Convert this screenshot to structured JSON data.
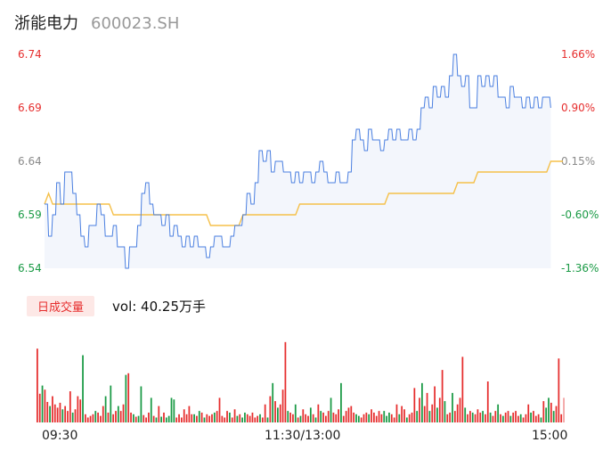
{
  "header": {
    "name": "浙能电力",
    "code": "600023.SH"
  },
  "price_ticks": [
    {
      "value": "6.74",
      "pct": "1.66%",
      "tone": "up"
    },
    {
      "value": "6.69",
      "pct": "0.90%",
      "tone": "up"
    },
    {
      "value": "6.64",
      "pct": "0.15%",
      "tone": "flat"
    },
    {
      "value": "6.59",
      "pct": "-0.60%",
      "tone": "down"
    },
    {
      "value": "6.54",
      "pct": "-1.36%",
      "tone": "down"
    }
  ],
  "volume": {
    "tab_label": "日成交量",
    "text": "vol: 40.25万手"
  },
  "time_labels": {
    "start": "09:30",
    "mid": "11:30/13:00",
    "end": "15:00"
  },
  "colors": {
    "price_line": "#4a7fe0",
    "avg_line": "#f5c04a",
    "up": "#e62e2e",
    "down": "#1a9a45",
    "area_fill": "#f3f6fc"
  },
  "chart_data": {
    "type": "line",
    "ylim": [
      6.54,
      6.74
    ],
    "price_points": [
      [
        0,
        6.6
      ],
      [
        1,
        6.57
      ],
      [
        2,
        6.59
      ],
      [
        3,
        6.62
      ],
      [
        4,
        6.6
      ],
      [
        5,
        6.63
      ],
      [
        6,
        6.63
      ],
      [
        7,
        6.61
      ],
      [
        8,
        6.59
      ],
      [
        9,
        6.57
      ],
      [
        10,
        6.56
      ],
      [
        11,
        6.58
      ],
      [
        12,
        6.58
      ],
      [
        13,
        6.6
      ],
      [
        14,
        6.59
      ],
      [
        15,
        6.57
      ],
      [
        16,
        6.57
      ],
      [
        17,
        6.58
      ],
      [
        18,
        6.56
      ],
      [
        19,
        6.56
      ],
      [
        20,
        6.54
      ],
      [
        21,
        6.56
      ],
      [
        22,
        6.56
      ],
      [
        23,
        6.58
      ],
      [
        24,
        6.61
      ],
      [
        25,
        6.62
      ],
      [
        26,
        6.6
      ],
      [
        27,
        6.59
      ],
      [
        28,
        6.59
      ],
      [
        29,
        6.58
      ],
      [
        30,
        6.59
      ],
      [
        31,
        6.57
      ],
      [
        32,
        6.58
      ],
      [
        33,
        6.57
      ],
      [
        34,
        6.56
      ],
      [
        35,
        6.57
      ],
      [
        36,
        6.56
      ],
      [
        37,
        6.57
      ],
      [
        38,
        6.56
      ],
      [
        39,
        6.56
      ],
      [
        40,
        6.55
      ],
      [
        41,
        6.56
      ],
      [
        42,
        6.57
      ],
      [
        43,
        6.57
      ],
      [
        44,
        6.56
      ],
      [
        45,
        6.56
      ],
      [
        46,
        6.57
      ],
      [
        47,
        6.58
      ],
      [
        48,
        6.58
      ],
      [
        49,
        6.59
      ],
      [
        50,
        6.61
      ],
      [
        51,
        6.6
      ],
      [
        52,
        6.62
      ],
      [
        53,
        6.65
      ],
      [
        54,
        6.64
      ],
      [
        55,
        6.65
      ],
      [
        56,
        6.63
      ],
      [
        57,
        6.64
      ],
      [
        58,
        6.64
      ],
      [
        59,
        6.63
      ],
      [
        60,
        6.63
      ],
      [
        61,
        6.62
      ],
      [
        62,
        6.63
      ],
      [
        63,
        6.62
      ],
      [
        64,
        6.63
      ],
      [
        65,
        6.63
      ],
      [
        66,
        6.62
      ],
      [
        67,
        6.63
      ],
      [
        68,
        6.64
      ],
      [
        69,
        6.63
      ],
      [
        70,
        6.62
      ],
      [
        71,
        6.62
      ],
      [
        72,
        6.63
      ],
      [
        73,
        6.62
      ],
      [
        74,
        6.62
      ],
      [
        75,
        6.63
      ],
      [
        76,
        6.66
      ],
      [
        77,
        6.67
      ],
      [
        78,
        6.66
      ],
      [
        79,
        6.65
      ],
      [
        80,
        6.67
      ],
      [
        81,
        6.66
      ],
      [
        82,
        6.66
      ],
      [
        83,
        6.65
      ],
      [
        84,
        6.66
      ],
      [
        85,
        6.67
      ],
      [
        86,
        6.66
      ],
      [
        87,
        6.67
      ],
      [
        88,
        6.66
      ],
      [
        89,
        6.66
      ],
      [
        90,
        6.67
      ],
      [
        91,
        6.66
      ],
      [
        92,
        6.67
      ],
      [
        93,
        6.69
      ],
      [
        94,
        6.7
      ],
      [
        95,
        6.69
      ],
      [
        96,
        6.71
      ],
      [
        97,
        6.7
      ],
      [
        98,
        6.71
      ],
      [
        99,
        6.7
      ],
      [
        100,
        6.72
      ],
      [
        101,
        6.74
      ],
      [
        102,
        6.72
      ],
      [
        103,
        6.71
      ],
      [
        104,
        6.72
      ],
      [
        105,
        6.69
      ],
      [
        106,
        6.69
      ],
      [
        107,
        6.72
      ],
      [
        108,
        6.71
      ],
      [
        109,
        6.72
      ],
      [
        110,
        6.71
      ],
      [
        111,
        6.72
      ],
      [
        112,
        6.7
      ],
      [
        113,
        6.7
      ],
      [
        114,
        6.69
      ],
      [
        115,
        6.71
      ],
      [
        116,
        6.7
      ],
      [
        117,
        6.7
      ],
      [
        118,
        6.69
      ],
      [
        119,
        6.7
      ],
      [
        120,
        6.69
      ],
      [
        121,
        6.7
      ],
      [
        122,
        6.69
      ],
      [
        123,
        6.7
      ],
      [
        124,
        6.7
      ],
      [
        125,
        6.69
      ]
    ],
    "avg_points": [
      [
        0,
        6.6
      ],
      [
        1,
        6.61
      ],
      [
        2,
        6.6
      ],
      [
        6,
        6.6
      ],
      [
        16,
        6.6
      ],
      [
        17,
        6.59
      ],
      [
        24,
        6.59
      ],
      [
        40,
        6.59
      ],
      [
        41,
        6.58
      ],
      [
        48,
        6.58
      ],
      [
        49,
        6.59
      ],
      [
        62,
        6.59
      ],
      [
        63,
        6.6
      ],
      [
        84,
        6.6
      ],
      [
        85,
        6.61
      ],
      [
        101,
        6.61
      ],
      [
        102,
        6.62
      ],
      [
        106,
        6.62
      ],
      [
        107,
        6.63
      ],
      [
        124,
        6.63
      ],
      [
        125,
        6.64
      ],
      [
        128,
        6.64
      ]
    ],
    "volumes": [
      {
        "v": 90,
        "d": "u"
      },
      {
        "v": 35,
        "d": "u"
      },
      {
        "v": 45,
        "d": "d"
      },
      {
        "v": 40,
        "d": "u"
      },
      {
        "v": 25,
        "d": "u"
      },
      {
        "v": 20,
        "d": "d"
      },
      {
        "v": 32,
        "d": "u"
      },
      {
        "v": 22,
        "d": "u"
      },
      {
        "v": 18,
        "d": "u"
      },
      {
        "v": 24,
        "d": "u"
      },
      {
        "v": 16,
        "d": "d"
      },
      {
        "v": 20,
        "d": "u"
      },
      {
        "v": 14,
        "d": "u"
      },
      {
        "v": 38,
        "d": "u"
      },
      {
        "v": 12,
        "d": "d"
      },
      {
        "v": 16,
        "d": "u"
      },
      {
        "v": 32,
        "d": "u"
      },
      {
        "v": 28,
        "d": "u"
      },
      {
        "v": 82,
        "d": "d"
      },
      {
        "v": 10,
        "d": "u"
      },
      {
        "v": 6,
        "d": "u"
      },
      {
        "v": 8,
        "d": "u"
      },
      {
        "v": 10,
        "d": "u"
      },
      {
        "v": 14,
        "d": "d"
      },
      {
        "v": 12,
        "d": "u"
      },
      {
        "v": 8,
        "d": "u"
      },
      {
        "v": 20,
        "d": "u"
      },
      {
        "v": 32,
        "d": "d"
      },
      {
        "v": 12,
        "d": "u"
      },
      {
        "v": 45,
        "d": "d"
      },
      {
        "v": 10,
        "d": "u"
      },
      {
        "v": 14,
        "d": "u"
      },
      {
        "v": 20,
        "d": "d"
      },
      {
        "v": 14,
        "d": "u"
      },
      {
        "v": 22,
        "d": "u"
      },
      {
        "v": 58,
        "d": "d"
      },
      {
        "v": 60,
        "d": "u"
      },
      {
        "v": 12,
        "d": "u"
      },
      {
        "v": 10,
        "d": "d"
      },
      {
        "v": 7,
        "d": "u"
      },
      {
        "v": 8,
        "d": "d"
      },
      {
        "v": 44,
        "d": "d"
      },
      {
        "v": 9,
        "d": "u"
      },
      {
        "v": 6,
        "d": "u"
      },
      {
        "v": 12,
        "d": "u"
      },
      {
        "v": 30,
        "d": "d"
      },
      {
        "v": 8,
        "d": "u"
      },
      {
        "v": 6,
        "d": "d"
      },
      {
        "v": 20,
        "d": "u"
      },
      {
        "v": 7,
        "d": "d"
      },
      {
        "v": 12,
        "d": "u"
      },
      {
        "v": 6,
        "d": "d"
      },
      {
        "v": 8,
        "d": "d"
      },
      {
        "v": 30,
        "d": "d"
      },
      {
        "v": 28,
        "d": "d"
      },
      {
        "v": 6,
        "d": "u"
      },
      {
        "v": 10,
        "d": "u"
      },
      {
        "v": 6,
        "d": "u"
      },
      {
        "v": 16,
        "d": "u"
      },
      {
        "v": 10,
        "d": "u"
      },
      {
        "v": 20,
        "d": "u"
      },
      {
        "v": 10,
        "d": "u"
      },
      {
        "v": 10,
        "d": "d"
      },
      {
        "v": 8,
        "d": "u"
      },
      {
        "v": 14,
        "d": "d"
      },
      {
        "v": 12,
        "d": "u"
      },
      {
        "v": 6,
        "d": "d"
      },
      {
        "v": 10,
        "d": "u"
      },
      {
        "v": 8,
        "d": "u"
      },
      {
        "v": 10,
        "d": "u"
      },
      {
        "v": 12,
        "d": "d"
      },
      {
        "v": 14,
        "d": "u"
      },
      {
        "v": 30,
        "d": "u"
      },
      {
        "v": 8,
        "d": "u"
      },
      {
        "v": 6,
        "d": "u"
      },
      {
        "v": 14,
        "d": "u"
      },
      {
        "v": 12,
        "d": "d"
      },
      {
        "v": 6,
        "d": "u"
      },
      {
        "v": 16,
        "d": "u"
      },
      {
        "v": 8,
        "d": "d"
      },
      {
        "v": 10,
        "d": "u"
      },
      {
        "v": 6,
        "d": "d"
      },
      {
        "v": 12,
        "d": "d"
      },
      {
        "v": 10,
        "d": "u"
      },
      {
        "v": 8,
        "d": "u"
      },
      {
        "v": 12,
        "d": "u"
      },
      {
        "v": 6,
        "d": "u"
      },
      {
        "v": 8,
        "d": "u"
      },
      {
        "v": 10,
        "d": "d"
      },
      {
        "v": 6,
        "d": "u"
      },
      {
        "v": 22,
        "d": "u"
      },
      {
        "v": 6,
        "d": "d"
      },
      {
        "v": 32,
        "d": "u"
      },
      {
        "v": 48,
        "d": "d"
      },
      {
        "v": 26,
        "d": "u"
      },
      {
        "v": 18,
        "d": "d"
      },
      {
        "v": 22,
        "d": "u"
      },
      {
        "v": 40,
        "d": "u"
      },
      {
        "v": 98,
        "d": "u"
      },
      {
        "v": 14,
        "d": "d"
      },
      {
        "v": 12,
        "d": "u"
      },
      {
        "v": 10,
        "d": "u"
      },
      {
        "v": 22,
        "d": "d"
      },
      {
        "v": 6,
        "d": "u"
      },
      {
        "v": 8,
        "d": "d"
      },
      {
        "v": 16,
        "d": "u"
      },
      {
        "v": 10,
        "d": "u"
      },
      {
        "v": 8,
        "d": "u"
      },
      {
        "v": 18,
        "d": "d"
      },
      {
        "v": 10,
        "d": "u"
      },
      {
        "v": 6,
        "d": "d"
      },
      {
        "v": 22,
        "d": "u"
      },
      {
        "v": 14,
        "d": "d"
      },
      {
        "v": 12,
        "d": "u"
      },
      {
        "v": 8,
        "d": "u"
      },
      {
        "v": 14,
        "d": "u"
      },
      {
        "v": 30,
        "d": "d"
      },
      {
        "v": 12,
        "d": "u"
      },
      {
        "v": 10,
        "d": "u"
      },
      {
        "v": 16,
        "d": "u"
      },
      {
        "v": 48,
        "d": "d"
      },
      {
        "v": 8,
        "d": "u"
      },
      {
        "v": 14,
        "d": "u"
      },
      {
        "v": 18,
        "d": "u"
      },
      {
        "v": 20,
        "d": "u"
      },
      {
        "v": 12,
        "d": "u"
      },
      {
        "v": 10,
        "d": "d"
      },
      {
        "v": 8,
        "d": "d"
      },
      {
        "v": 6,
        "d": "u"
      },
      {
        "v": 10,
        "d": "u"
      },
      {
        "v": 12,
        "d": "u"
      },
      {
        "v": 10,
        "d": "d"
      },
      {
        "v": 16,
        "d": "u"
      },
      {
        "v": 12,
        "d": "u"
      },
      {
        "v": 8,
        "d": "u"
      },
      {
        "v": 14,
        "d": "u"
      },
      {
        "v": 10,
        "d": "u"
      },
      {
        "v": 14,
        "d": "d"
      },
      {
        "v": 8,
        "d": "d"
      },
      {
        "v": 12,
        "d": "d"
      },
      {
        "v": 10,
        "d": "u"
      },
      {
        "v": 6,
        "d": "u"
      },
      {
        "v": 22,
        "d": "u"
      },
      {
        "v": 10,
        "d": "d"
      },
      {
        "v": 20,
        "d": "u"
      },
      {
        "v": 16,
        "d": "u"
      },
      {
        "v": 6,
        "d": "d"
      },
      {
        "v": 10,
        "d": "u"
      },
      {
        "v": 12,
        "d": "u"
      },
      {
        "v": 42,
        "d": "u"
      },
      {
        "v": 14,
        "d": "d"
      },
      {
        "v": 30,
        "d": "u"
      },
      {
        "v": 48,
        "d": "d"
      },
      {
        "v": 20,
        "d": "u"
      },
      {
        "v": 36,
        "d": "u"
      },
      {
        "v": 14,
        "d": "d"
      },
      {
        "v": 22,
        "d": "u"
      },
      {
        "v": 44,
        "d": "u"
      },
      {
        "v": 18,
        "d": "d"
      },
      {
        "v": 30,
        "d": "u"
      },
      {
        "v": 64,
        "d": "u"
      },
      {
        "v": 26,
        "d": "d"
      },
      {
        "v": 10,
        "d": "u"
      },
      {
        "v": 12,
        "d": "u"
      },
      {
        "v": 36,
        "d": "d"
      },
      {
        "v": 14,
        "d": "u"
      },
      {
        "v": 22,
        "d": "u"
      },
      {
        "v": 30,
        "d": "u"
      },
      {
        "v": 80,
        "d": "u"
      },
      {
        "v": 18,
        "d": "d"
      },
      {
        "v": 10,
        "d": "u"
      },
      {
        "v": 14,
        "d": "u"
      },
      {
        "v": 12,
        "d": "d"
      },
      {
        "v": 10,
        "d": "u"
      },
      {
        "v": 16,
        "d": "u"
      },
      {
        "v": 12,
        "d": "u"
      },
      {
        "v": 14,
        "d": "d"
      },
      {
        "v": 10,
        "d": "u"
      },
      {
        "v": 50,
        "d": "u"
      },
      {
        "v": 12,
        "d": "d"
      },
      {
        "v": 8,
        "d": "u"
      },
      {
        "v": 14,
        "d": "u"
      },
      {
        "v": 22,
        "d": "d"
      },
      {
        "v": 10,
        "d": "u"
      },
      {
        "v": 8,
        "d": "d"
      },
      {
        "v": 12,
        "d": "u"
      },
      {
        "v": 14,
        "d": "u"
      },
      {
        "v": 8,
        "d": "d"
      },
      {
        "v": 12,
        "d": "u"
      },
      {
        "v": 14,
        "d": "u"
      },
      {
        "v": 8,
        "d": "u"
      },
      {
        "v": 10,
        "d": "d"
      },
      {
        "v": 6,
        "d": "u"
      },
      {
        "v": 10,
        "d": "u"
      },
      {
        "v": 22,
        "d": "u"
      },
      {
        "v": 12,
        "d": "d"
      },
      {
        "v": 14,
        "d": "u"
      },
      {
        "v": 8,
        "d": "u"
      },
      {
        "v": 10,
        "d": "u"
      },
      {
        "v": 6,
        "d": "d"
      },
      {
        "v": 26,
        "d": "u"
      },
      {
        "v": 18,
        "d": "d"
      },
      {
        "v": 30,
        "d": "d"
      },
      {
        "v": 24,
        "d": "u"
      },
      {
        "v": 14,
        "d": "d"
      },
      {
        "v": 20,
        "d": "u"
      },
      {
        "v": 78,
        "d": "u"
      },
      {
        "v": 10,
        "d": "u"
      },
      {
        "v": 30,
        "d": "p"
      }
    ]
  }
}
